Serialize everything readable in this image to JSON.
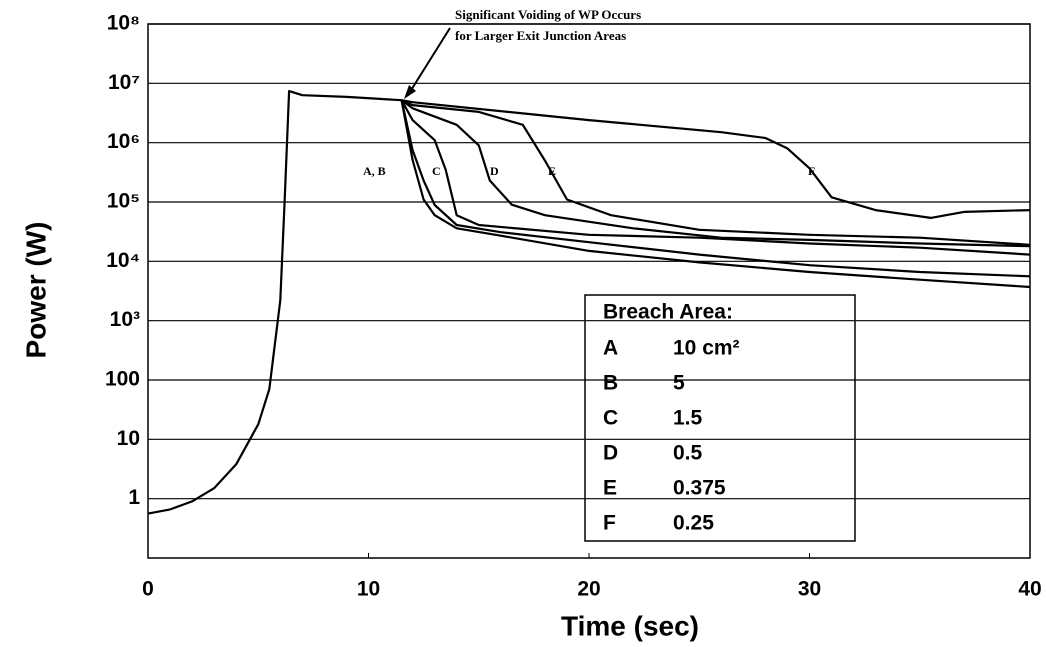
{
  "chart_data": {
    "type": "line",
    "x_label": "Time (sec)",
    "y_label": "Power (W)",
    "log_y": true,
    "grid": true,
    "xlim": [
      0,
      40
    ],
    "xticks": [
      0,
      10,
      20,
      30,
      40
    ],
    "ylim": [
      0.1,
      100000000
    ],
    "yticks": [
      1,
      10,
      100,
      {
        "value": 1000,
        "label": "10³"
      },
      {
        "value": 10000,
        "label": "10⁴"
      },
      {
        "value": 100000,
        "label": "10⁵"
      },
      {
        "value": 1000000,
        "label": "10⁶"
      },
      {
        "value": 10000000,
        "label": "10⁷"
      },
      {
        "value": 100000000,
        "label": "10⁸"
      }
    ],
    "annotation": [
      "Significant Voiding of WP Occurs",
      "for Larger Exit Junction Areas"
    ],
    "curve_labels": [
      "A, B",
      "C",
      "D",
      "E",
      "F"
    ],
    "legend_title": "Breach Area:",
    "series": [
      {
        "name": "A",
        "breach_area": "10 cm²",
        "color": "#000000",
        "x": [
          0,
          1,
          2,
          3,
          4,
          5,
          5.5,
          6,
          6.2,
          6.4,
          7,
          9,
          11.5,
          12,
          12.5,
          13,
          14,
          16,
          20,
          25,
          30,
          35,
          40
        ],
        "values": [
          0.56,
          0.66,
          0.9,
          1.5,
          3.8,
          18,
          70,
          2200,
          110000,
          7400000,
          6300000,
          5900000,
          5200000,
          510000,
          110000,
          60000,
          36000,
          27000,
          15000,
          9600,
          6600,
          4900,
          3700
        ]
      },
      {
        "name": "B",
        "breach_area": "5",
        "color": "#000000",
        "x": [
          11.5,
          12,
          12.5,
          13,
          14,
          16,
          20,
          25,
          30,
          35,
          40
        ],
        "values": [
          5200000,
          750000,
          230000,
          89000,
          41000,
          31000,
          21000,
          13000,
          8600,
          6600,
          5600
        ]
      },
      {
        "name": "C",
        "breach_area": "1.5",
        "color": "#000000",
        "x": [
          11.5,
          12,
          13,
          13.5,
          14,
          15,
          20,
          25,
          30,
          35,
          40
        ],
        "values": [
          5200000,
          2400000,
          1100000,
          350000,
          60000,
          41000,
          28000,
          25000,
          20000,
          17000,
          13000
        ]
      },
      {
        "name": "D",
        "breach_area": "0.5",
        "color": "#000000",
        "x": [
          11.5,
          12,
          14,
          15,
          15.5,
          16.5,
          18,
          22,
          26,
          30,
          35,
          40
        ],
        "values": [
          5200000,
          3800000,
          2000000,
          900000,
          230000,
          90000,
          60000,
          36000,
          25000,
          23000,
          20000,
          18000
        ]
      },
      {
        "name": "E",
        "breach_area": "0.375",
        "color": "#000000",
        "x": [
          11.5,
          12,
          15,
          17,
          18,
          19,
          21,
          25,
          30,
          35,
          40
        ],
        "values": [
          5200000,
          4300000,
          3300000,
          2000000,
          500000,
          110000,
          60000,
          34000,
          28000,
          25000,
          19000
        ]
      },
      {
        "name": "F",
        "breach_area": "0.25",
        "color": "#000000",
        "x": [
          11.5,
          12,
          20,
          26,
          28,
          29,
          30,
          31,
          33,
          35.5,
          37,
          40
        ],
        "values": [
          5200000,
          4800000,
          2400000,
          1500000,
          1200000,
          800000,
          370000,
          120000,
          73000,
          54000,
          68000,
          73000
        ]
      }
    ]
  }
}
